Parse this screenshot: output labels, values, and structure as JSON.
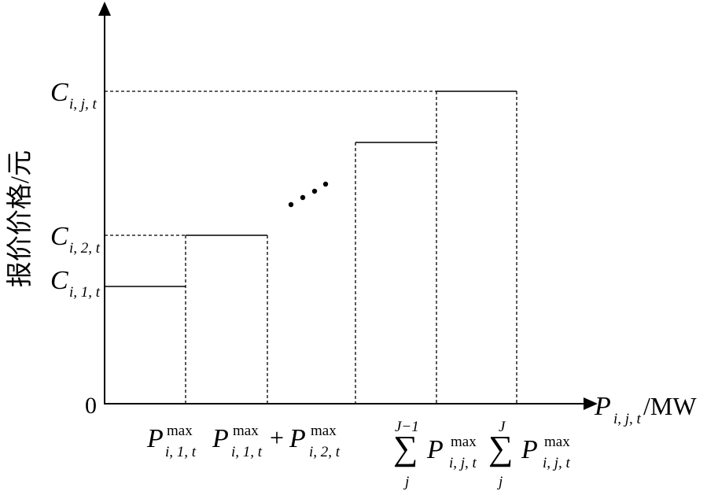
{
  "y_axis": {
    "label": "报价价格/元",
    "origin": "0",
    "ticks": [
      {
        "symbol": "C",
        "subscript": "i, j, t"
      },
      {
        "symbol": "C",
        "subscript": "i, 2, t"
      },
      {
        "symbol": "C",
        "subscript": "i, 1, t"
      }
    ]
  },
  "x_axis": {
    "label": {
      "symbol": "P",
      "subscript": "i, j, t",
      "unit": "/MW"
    },
    "ticks": [
      {
        "symbol": "P",
        "superscript": "max",
        "subscript": "i, 1, t"
      },
      {
        "terms": [
          {
            "symbol": "P",
            "superscript": "max",
            "subscript": "i, 1, t"
          },
          {
            "symbol": "P",
            "superscript": "max",
            "subscript": "i, 2, t"
          }
        ],
        "operator": "+"
      },
      {
        "sum": "∑",
        "upper": "J−1",
        "lower": "j",
        "symbol": "P",
        "superscript": "max",
        "subscript": "i, j, t"
      },
      {
        "sum": "∑",
        "upper": "J",
        "lower": "j",
        "symbol": "P",
        "superscript": "max",
        "subscript": "i, j, t"
      }
    ]
  }
}
